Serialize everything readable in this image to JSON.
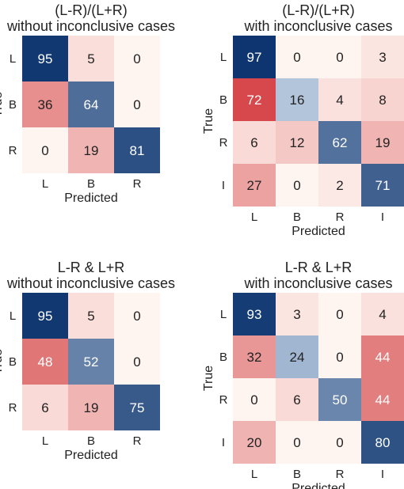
{
  "chart_data": [
    {
      "type": "heatmap",
      "title_line1": "(L-R)/(L+R)",
      "title_line2": "without inconclusive cases",
      "xlabel": "Predicted",
      "ylabel": "True",
      "row_labels": [
        "L",
        "B",
        "R"
      ],
      "col_labels": [
        "L",
        "B",
        "R"
      ],
      "values": [
        [
          95,
          5,
          0
        ],
        [
          36,
          64,
          0
        ],
        [
          0,
          19,
          81
        ]
      ],
      "signs": [
        [
          1,
          -1,
          -1
        ],
        [
          -1,
          1,
          -1
        ],
        [
          -1,
          -1,
          1
        ]
      ]
    },
    {
      "type": "heatmap",
      "title_line1": "(L-R)/(L+R)",
      "title_line2": "with inconclusive cases",
      "xlabel": "Predicted",
      "ylabel": "True",
      "row_labels": [
        "L",
        "B",
        "R",
        "I"
      ],
      "col_labels": [
        "L",
        "B",
        "R",
        "I"
      ],
      "values": [
        [
          97,
          0,
          0,
          3
        ],
        [
          72,
          16,
          4,
          8
        ],
        [
          6,
          12,
          62,
          19
        ],
        [
          27,
          0,
          2,
          71
        ]
      ],
      "signs": [
        [
          1,
          -1,
          -1,
          -1
        ],
        [
          -1,
          1,
          -1,
          -1
        ],
        [
          -1,
          -1,
          1,
          -1
        ],
        [
          -1,
          -1,
          -1,
          1
        ]
      ]
    },
    {
      "type": "heatmap",
      "title_line1": "L-R & L+R",
      "title_line2": "without inconclusive cases",
      "xlabel": "Predicted",
      "ylabel": "True",
      "row_labels": [
        "L",
        "B",
        "R"
      ],
      "col_labels": [
        "L",
        "B",
        "R"
      ],
      "values": [
        [
          95,
          5,
          0
        ],
        [
          48,
          52,
          0
        ],
        [
          6,
          19,
          75
        ]
      ],
      "signs": [
        [
          1,
          -1,
          -1
        ],
        [
          -1,
          1,
          -1
        ],
        [
          -1,
          -1,
          1
        ]
      ]
    },
    {
      "type": "heatmap",
      "title_line1": "L-R & L+R",
      "title_line2": "with inconclusive cases",
      "xlabel": "Predicted",
      "ylabel": "True",
      "row_labels": [
        "L",
        "B",
        "R",
        "I"
      ],
      "col_labels": [
        "L",
        "B",
        "R",
        "I"
      ],
      "values": [
        [
          93,
          3,
          0,
          4
        ],
        [
          32,
          24,
          0,
          44
        ],
        [
          0,
          6,
          50,
          44
        ],
        [
          20,
          0,
          0,
          80
        ]
      ],
      "signs": [
        [
          1,
          -1,
          -1,
          -1
        ],
        [
          -1,
          1,
          -1,
          -1
        ],
        [
          -1,
          -1,
          1,
          -1
        ],
        [
          -1,
          -1,
          -1,
          1
        ]
      ]
    }
  ],
  "colors": {
    "blue_dark": "#08306b",
    "blue_light": "#dbe9f6",
    "red_dark": "#cb181d",
    "red_light": "#fff5f0",
    "text_dark": "#222222",
    "text_light": "#ffffff"
  }
}
